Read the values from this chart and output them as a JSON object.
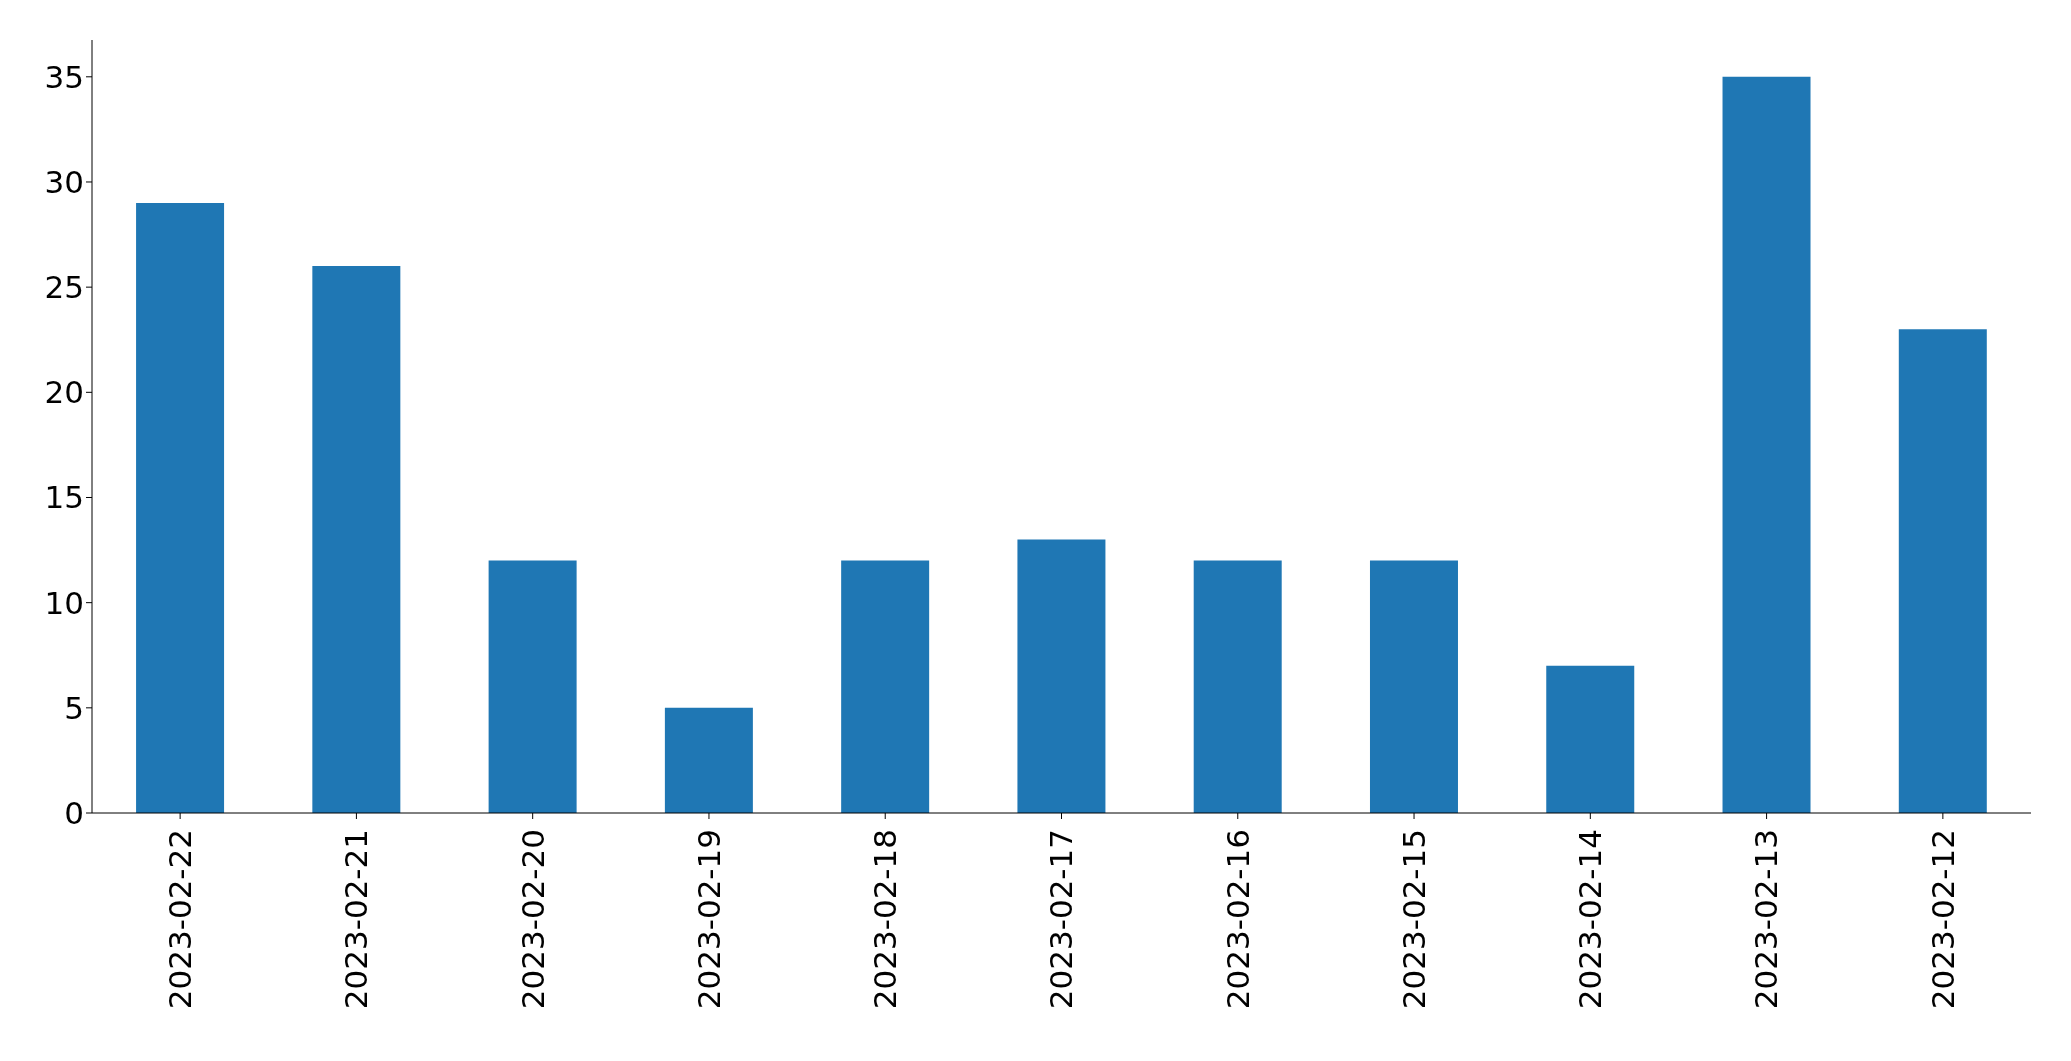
{
  "chart_data": {
    "type": "bar",
    "categories": [
      "2023-02-22",
      "2023-02-21",
      "2023-02-20",
      "2023-02-19",
      "2023-02-18",
      "2023-02-17",
      "2023-02-16",
      "2023-02-15",
      "2023-02-14",
      "2023-02-13",
      "2023-02-12"
    ],
    "values": [
      29,
      26,
      12,
      5,
      12,
      13,
      12,
      12,
      7,
      35,
      23
    ],
    "color": "#1f77b4",
    "ylim": [
      0,
      36.75
    ],
    "yticks": [
      0,
      5,
      10,
      15,
      20,
      25,
      30,
      35
    ]
  }
}
